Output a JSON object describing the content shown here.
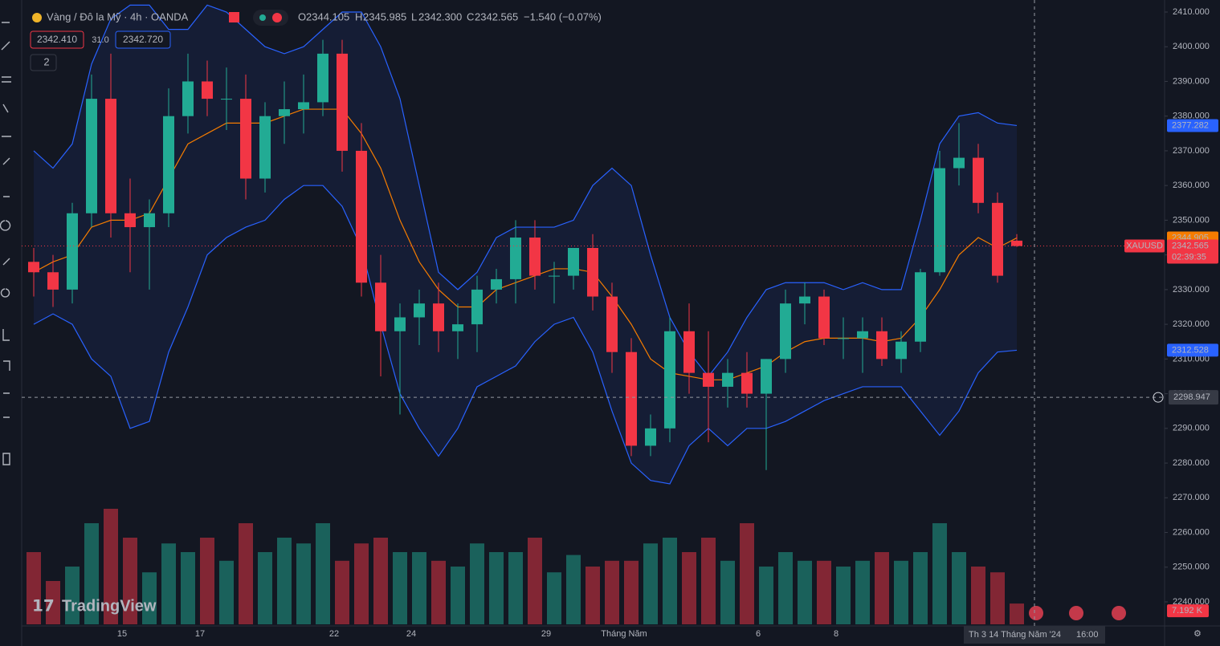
{
  "header": {
    "title": "Vàng / Đô la Mỹ · 4h · OANDA",
    "o_label": "O",
    "o": "2344.105",
    "h_label": "H",
    "h": "2345.985",
    "l_label": "L",
    "l": "2342.300",
    "c_label": "C",
    "c": "2342.565",
    "change": "−1.540 (−0.07%)",
    "bid": "2342.410",
    "spread": "31.0",
    "ask": "2342.720",
    "indicators": "2"
  },
  "footer": {
    "logo": "TradingView",
    "cursor_date": "Th 3 14 Tháng Năm '24",
    "cursor_time": "16:00"
  },
  "chart_data": {
    "type": "candlestick",
    "categories": [
      "15",
      "17",
      "22",
      "24",
      "29",
      "Tháng Năm",
      "6",
      "8"
    ],
    "open": [
      2338,
      2335,
      2330,
      2352,
      2385,
      2352,
      2348,
      2352,
      2380,
      2390,
      2385,
      2385,
      2362,
      2380,
      2382,
      2384,
      2398,
      2370,
      2332,
      2318,
      2322,
      2326,
      2318,
      2320,
      2330,
      2333,
      2345,
      2334,
      2334,
      2342,
      2328,
      2312,
      2285,
      2290,
      2318,
      2306,
      2302,
      2306,
      2300,
      2310,
      2326,
      2328,
      2316,
      2316,
      2318,
      2310,
      2315,
      2335,
      2365,
      2368,
      2355,
      2344.105
    ],
    "high": [
      2342,
      2340,
      2355,
      2392,
      2398,
      2362,
      2356,
      2388,
      2398,
      2396,
      2394,
      2392,
      2384,
      2390,
      2392,
      2402,
      2402,
      2378,
      2340,
      2326,
      2330,
      2332,
      2326,
      2334,
      2336,
      2350,
      2350,
      2338,
      2342,
      2346,
      2332,
      2316,
      2294,
      2322,
      2326,
      2318,
      2310,
      2312,
      2310,
      2330,
      2332,
      2330,
      2322,
      2322,
      2322,
      2318,
      2336,
      2370,
      2378,
      2372,
      2358,
      2345.985
    ],
    "low": [
      2328,
      2325,
      2326,
      2348,
      2345,
      2335,
      2330,
      2348,
      2375,
      2380,
      2376,
      2356,
      2358,
      2372,
      2375,
      2380,
      2364,
      2328,
      2305,
      2294,
      2314,
      2312,
      2310,
      2312,
      2326,
      2326,
      2330,
      2326,
      2330,
      2324,
      2306,
      2282,
      2282,
      2286,
      2300,
      2286,
      2296,
      2296,
      2278,
      2306,
      2320,
      2314,
      2310,
      2306,
      2308,
      2306,
      2312,
      2334,
      2360,
      2352,
      2332,
      2342.3
    ],
    "close": [
      2335,
      2330,
      2352,
      2385,
      2352,
      2348,
      2352,
      2380,
      2390,
      2385,
      2385,
      2362,
      2380,
      2382,
      2384,
      2398,
      2370,
      2332,
      2318,
      2322,
      2326,
      2318,
      2320,
      2330,
      2333,
      2345,
      2334,
      2334,
      2342,
      2328,
      2312,
      2285,
      2290,
      2318,
      2306,
      2302,
      2306,
      2300,
      2310,
      2326,
      2328,
      2316,
      2316,
      2318,
      2310,
      2315,
      2335,
      2365,
      2368,
      2355,
      2334,
      2342.565
    ],
    "volume": [
      25,
      15,
      20,
      35,
      40,
      30,
      18,
      28,
      25,
      30,
      22,
      35,
      25,
      30,
      28,
      35,
      22,
      28,
      30,
      25,
      25,
      22,
      20,
      28,
      25,
      25,
      30,
      18,
      24,
      20,
      22,
      22,
      28,
      30,
      25,
      30,
      22,
      35,
      20,
      25,
      22,
      22,
      20,
      22,
      25,
      22,
      25,
      35,
      25,
      20,
      18,
      7.192
    ],
    "bollinger": {
      "upper": [
        2370,
        2365,
        2372,
        2395,
        2408,
        2412,
        2412,
        2405,
        2405,
        2412,
        2410,
        2405,
        2400,
        2398,
        2400,
        2405,
        2410,
        2410,
        2400,
        2385,
        2360,
        2335,
        2330,
        2335,
        2345,
        2348,
        2348,
        2348,
        2350,
        2360,
        2365,
        2360,
        2340,
        2322,
        2312,
        2305,
        2312,
        2322,
        2330,
        2332,
        2332,
        2332,
        2330,
        2332,
        2330,
        2330,
        2350,
        2372,
        2380,
        2381,
        2378,
        2377.282
      ],
      "middle": [
        2335,
        2338,
        2340,
        2348,
        2350,
        2350,
        2352,
        2362,
        2372,
        2375,
        2378,
        2378,
        2378,
        2380,
        2382,
        2382,
        2382,
        2375,
        2365,
        2350,
        2338,
        2330,
        2325,
        2325,
        2330,
        2332,
        2334,
        2336,
        2336,
        2335,
        2328,
        2320,
        2310,
        2306,
        2305,
        2304,
        2304,
        2306,
        2308,
        2312,
        2315,
        2316,
        2316,
        2316,
        2315,
        2316,
        2322,
        2330,
        2340,
        2345,
        2342,
        2344.905
      ],
      "lower": [
        2320,
        2323,
        2320,
        2310,
        2305,
        2290,
        2292,
        2312,
        2325,
        2340,
        2345,
        2348,
        2350,
        2356,
        2360,
        2360,
        2354,
        2342,
        2320,
        2300,
        2290,
        2282,
        2290,
        2302,
        2305,
        2308,
        2315,
        2320,
        2322,
        2312,
        2295,
        2280,
        2275,
        2274,
        2285,
        2290,
        2285,
        2290,
        2290,
        2292,
        2295,
        2298,
        2300,
        2302,
        2302,
        2302,
        2295,
        2288,
        2295,
        2306,
        2312,
        2312.528
      ]
    },
    "up_color": "#22ab94",
    "down_color": "#f23645",
    "band_color": "#2962ff",
    "middle_color": "#f57c00",
    "ylim": [
      2240,
      2410
    ],
    "yticks": [
      {
        "value": 2240,
        "label": "2240.000"
      },
      {
        "value": 2250,
        "label": "2250.000"
      },
      {
        "value": 2260,
        "label": "2260.000"
      },
      {
        "value": 2270,
        "label": "2270.000"
      },
      {
        "value": 2280,
        "label": "2280.000"
      },
      {
        "value": 2290,
        "label": "2290.000"
      },
      {
        "value": 2300,
        "label": "2300.000"
      },
      {
        "value": 2310,
        "label": "2310.000"
      },
      {
        "value": 2320,
        "label": "2320.000"
      },
      {
        "value": 2330,
        "label": "2330.000"
      },
      {
        "value": 2340,
        "label": "2340.000"
      },
      {
        "value": 2350,
        "label": "2350.000"
      },
      {
        "value": 2360,
        "label": "2360.000"
      },
      {
        "value": 2370,
        "label": "2370.000"
      },
      {
        "value": 2380,
        "label": "2380.000"
      },
      {
        "value": 2390,
        "label": "2390.000"
      },
      {
        "value": 2400,
        "label": "2400.000"
      },
      {
        "value": 2410,
        "label": "2410.000"
      }
    ],
    "price_labels": {
      "symbol": "XAUUSD",
      "upper": {
        "value": 2377.282,
        "label": "2377.282"
      },
      "middle": {
        "value": 2344.905,
        "label": "2344.905"
      },
      "last": {
        "value": 2342.565,
        "label": "2342.565"
      },
      "countdown": "02:39:35",
      "lower": {
        "value": 2312.528,
        "label": "2312.528"
      },
      "crosshair": {
        "value": 2298.947,
        "label": "2298.947"
      },
      "volume": "7.192 K"
    }
  }
}
